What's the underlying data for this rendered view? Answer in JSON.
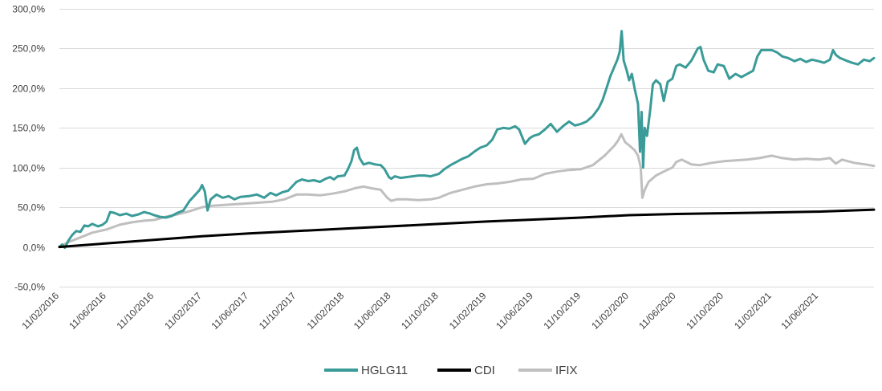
{
  "chart_data": {
    "type": "line",
    "xlabel": "",
    "ylabel": "",
    "y_ticks": [
      "300,0%",
      "250,0%",
      "200,0%",
      "150,0%",
      "100,0%",
      "50,0%",
      "0,0%",
      "-50,0%"
    ],
    "y_tick_values": [
      300,
      250,
      200,
      150,
      100,
      50,
      0,
      -50
    ],
    "ylim": [
      -50,
      300
    ],
    "xlim": [
      "2016-02-11",
      "2021-10-31"
    ],
    "x_ticks": [
      "11/02/2016",
      "11/06/2016",
      "11/10/2016",
      "11/02/2017",
      "11/06/2017",
      "11/10/2017",
      "11/02/2018",
      "11/06/2018",
      "11/10/2018",
      "11/02/2019",
      "11/06/2019",
      "11/10/2019",
      "11/02/2020",
      "11/06/2020",
      "11/10/2020",
      "11/02/2021",
      "11/06/2021"
    ],
    "x_tick_dates": [
      "2016-02-11",
      "2016-06-11",
      "2016-10-11",
      "2017-02-11",
      "2017-06-11",
      "2017-10-11",
      "2018-02-11",
      "2018-06-11",
      "2018-10-11",
      "2019-02-11",
      "2019-06-11",
      "2019-10-11",
      "2020-02-11",
      "2020-06-11",
      "2020-10-11",
      "2021-02-11",
      "2021-06-11"
    ],
    "grid": "horizontal",
    "legend_position": "bottom",
    "series": [
      {
        "name": "HGLG11",
        "color": "#3a9b98",
        "points": [
          [
            "2016-02-11",
            0
          ],
          [
            "2016-02-18",
            3
          ],
          [
            "2016-02-25",
            -1
          ],
          [
            "2016-03-05",
            8
          ],
          [
            "2016-03-15",
            15
          ],
          [
            "2016-03-25",
            20
          ],
          [
            "2016-04-05",
            19
          ],
          [
            "2016-04-15",
            27
          ],
          [
            "2016-04-25",
            26
          ],
          [
            "2016-05-05",
            29
          ],
          [
            "2016-05-20",
            26
          ],
          [
            "2016-06-01",
            28
          ],
          [
            "2016-06-11",
            32
          ],
          [
            "2016-06-20",
            44
          ],
          [
            "2016-07-01",
            43
          ],
          [
            "2016-07-15",
            40
          ],
          [
            "2016-08-01",
            42
          ],
          [
            "2016-08-15",
            39
          ],
          [
            "2016-09-01",
            41
          ],
          [
            "2016-09-15",
            44
          ],
          [
            "2016-10-01",
            42
          ],
          [
            "2016-10-11",
            40
          ],
          [
            "2016-10-25",
            38
          ],
          [
            "2016-11-10",
            37
          ],
          [
            "2016-11-25",
            39
          ],
          [
            "2016-12-10",
            43
          ],
          [
            "2016-12-25",
            46
          ],
          [
            "2017-01-10",
            58
          ],
          [
            "2017-01-25",
            66
          ],
          [
            "2017-02-05",
            72
          ],
          [
            "2017-02-11",
            78
          ],
          [
            "2017-02-18",
            70
          ],
          [
            "2017-02-25",
            46
          ],
          [
            "2017-03-05",
            60
          ],
          [
            "2017-03-20",
            66
          ],
          [
            "2017-04-05",
            62
          ],
          [
            "2017-04-20",
            64
          ],
          [
            "2017-05-05",
            60
          ],
          [
            "2017-05-20",
            63
          ],
          [
            "2017-06-11",
            64
          ],
          [
            "2017-07-01",
            66
          ],
          [
            "2017-07-20",
            62
          ],
          [
            "2017-08-05",
            68
          ],
          [
            "2017-08-20",
            65
          ],
          [
            "2017-09-05",
            69
          ],
          [
            "2017-09-20",
            71
          ],
          [
            "2017-10-11",
            82
          ],
          [
            "2017-10-25",
            85
          ],
          [
            "2017-11-10",
            83
          ],
          [
            "2017-11-25",
            84
          ],
          [
            "2017-12-10",
            82
          ],
          [
            "2017-12-25",
            86
          ],
          [
            "2018-01-05",
            88
          ],
          [
            "2018-01-15",
            85
          ],
          [
            "2018-01-25",
            89
          ],
          [
            "2018-02-11",
            90
          ],
          [
            "2018-02-20",
            98
          ],
          [
            "2018-03-01",
            108
          ],
          [
            "2018-03-08",
            122
          ],
          [
            "2018-03-15",
            125
          ],
          [
            "2018-03-22",
            112
          ],
          [
            "2018-04-01",
            104
          ],
          [
            "2018-04-15",
            106
          ],
          [
            "2018-05-01",
            104
          ],
          [
            "2018-05-15",
            103
          ],
          [
            "2018-05-25",
            98
          ],
          [
            "2018-06-05",
            88
          ],
          [
            "2018-06-11",
            86
          ],
          [
            "2018-06-20",
            89
          ],
          [
            "2018-07-05",
            87
          ],
          [
            "2018-07-20",
            88
          ],
          [
            "2018-08-05",
            89
          ],
          [
            "2018-08-20",
            90
          ],
          [
            "2018-09-05",
            90
          ],
          [
            "2018-09-20",
            89
          ],
          [
            "2018-10-11",
            92
          ],
          [
            "2018-10-25",
            98
          ],
          [
            "2018-11-10",
            103
          ],
          [
            "2018-11-25",
            107
          ],
          [
            "2018-12-10",
            111
          ],
          [
            "2018-12-25",
            114
          ],
          [
            "2019-01-10",
            120
          ],
          [
            "2019-01-25",
            125
          ],
          [
            "2019-02-11",
            128
          ],
          [
            "2019-02-25",
            135
          ],
          [
            "2019-03-10",
            148
          ],
          [
            "2019-03-25",
            150
          ],
          [
            "2019-04-10",
            149
          ],
          [
            "2019-04-25",
            152
          ],
          [
            "2019-05-05",
            148
          ],
          [
            "2019-05-20",
            130
          ],
          [
            "2019-06-01",
            137
          ],
          [
            "2019-06-11",
            140
          ],
          [
            "2019-06-25",
            142
          ],
          [
            "2019-07-10",
            148
          ],
          [
            "2019-07-25",
            155
          ],
          [
            "2019-08-10",
            145
          ],
          [
            "2019-08-25",
            152
          ],
          [
            "2019-09-10",
            158
          ],
          [
            "2019-09-25",
            153
          ],
          [
            "2019-10-11",
            155
          ],
          [
            "2019-10-25",
            158
          ],
          [
            "2019-11-10",
            165
          ],
          [
            "2019-11-25",
            175
          ],
          [
            "2019-12-05",
            185
          ],
          [
            "2019-12-15",
            200
          ],
          [
            "2019-12-25",
            215
          ],
          [
            "2020-01-05",
            228
          ],
          [
            "2020-01-12",
            236
          ],
          [
            "2020-01-18",
            246
          ],
          [
            "2020-01-23",
            272
          ],
          [
            "2020-01-28",
            235
          ],
          [
            "2020-02-05",
            222
          ],
          [
            "2020-02-11",
            210
          ],
          [
            "2020-02-18",
            218
          ],
          [
            "2020-02-25",
            200
          ],
          [
            "2020-03-05",
            180
          ],
          [
            "2020-03-10",
            120
          ],
          [
            "2020-03-14",
            170
          ],
          [
            "2020-03-18",
            100
          ],
          [
            "2020-03-22",
            150
          ],
          [
            "2020-03-28",
            140
          ],
          [
            "2020-04-05",
            172
          ],
          [
            "2020-04-12",
            205
          ],
          [
            "2020-04-20",
            210
          ],
          [
            "2020-05-01",
            205
          ],
          [
            "2020-05-10",
            184
          ],
          [
            "2020-05-20",
            208
          ],
          [
            "2020-06-01",
            212
          ],
          [
            "2020-06-11",
            228
          ],
          [
            "2020-06-20",
            230
          ],
          [
            "2020-07-05",
            226
          ],
          [
            "2020-07-20",
            235
          ],
          [
            "2020-08-05",
            250
          ],
          [
            "2020-08-12",
            252
          ],
          [
            "2020-08-20",
            236
          ],
          [
            "2020-09-01",
            222
          ],
          [
            "2020-09-15",
            220
          ],
          [
            "2020-09-25",
            230
          ],
          [
            "2020-10-11",
            228
          ],
          [
            "2020-10-25",
            212
          ],
          [
            "2020-11-10",
            218
          ],
          [
            "2020-11-25",
            214
          ],
          [
            "2020-12-10",
            218
          ],
          [
            "2020-12-25",
            222
          ],
          [
            "2021-01-05",
            240
          ],
          [
            "2021-01-15",
            248
          ],
          [
            "2021-02-11",
            248
          ],
          [
            "2021-02-25",
            245
          ],
          [
            "2021-03-10",
            240
          ],
          [
            "2021-03-25",
            238
          ],
          [
            "2021-04-10",
            234
          ],
          [
            "2021-04-25",
            237
          ],
          [
            "2021-05-10",
            233
          ],
          [
            "2021-05-25",
            236
          ],
          [
            "2021-06-11",
            234
          ],
          [
            "2021-06-25",
            232
          ],
          [
            "2021-07-10",
            236
          ],
          [
            "2021-07-18",
            248
          ],
          [
            "2021-07-25",
            242
          ],
          [
            "2021-08-05",
            238
          ],
          [
            "2021-08-20",
            235
          ],
          [
            "2021-09-05",
            232
          ],
          [
            "2021-09-20",
            230
          ],
          [
            "2021-10-05",
            236
          ],
          [
            "2021-10-20",
            234
          ],
          [
            "2021-10-31",
            238
          ]
        ]
      },
      {
        "name": "CDI",
        "color": "#000000",
        "points": [
          [
            "2016-02-11",
            0
          ],
          [
            "2016-06-11",
            4.5
          ],
          [
            "2016-10-11",
            9
          ],
          [
            "2017-02-11",
            13.5
          ],
          [
            "2017-06-11",
            17
          ],
          [
            "2017-10-11",
            20
          ],
          [
            "2018-02-11",
            23
          ],
          [
            "2018-06-11",
            26
          ],
          [
            "2018-10-11",
            29
          ],
          [
            "2019-02-11",
            32
          ],
          [
            "2019-06-11",
            34.5
          ],
          [
            "2019-10-11",
            37
          ],
          [
            "2020-02-11",
            40
          ],
          [
            "2020-06-11",
            41.5
          ],
          [
            "2020-10-11",
            42.5
          ],
          [
            "2021-02-11",
            43.5
          ],
          [
            "2021-06-11",
            44.5
          ],
          [
            "2021-10-31",
            47
          ]
        ]
      },
      {
        "name": "IFIX",
        "color": "#bfbfbf",
        "points": [
          [
            "2016-02-11",
            0
          ],
          [
            "2016-03-05",
            6
          ],
          [
            "2016-04-05",
            12
          ],
          [
            "2016-05-05",
            18
          ],
          [
            "2016-06-11",
            22
          ],
          [
            "2016-07-15",
            28
          ],
          [
            "2016-08-15",
            31
          ],
          [
            "2016-09-15",
            33
          ],
          [
            "2016-10-11",
            34
          ],
          [
            "2016-11-10",
            38
          ],
          [
            "2016-12-10",
            41
          ],
          [
            "2017-01-10",
            45
          ],
          [
            "2017-02-11",
            50
          ],
          [
            "2017-03-10",
            52
          ],
          [
            "2017-04-10",
            53
          ],
          [
            "2017-05-10",
            54
          ],
          [
            "2017-06-11",
            55
          ],
          [
            "2017-07-10",
            56
          ],
          [
            "2017-08-10",
            57
          ],
          [
            "2017-09-10",
            60
          ],
          [
            "2017-10-11",
            66
          ],
          [
            "2017-11-10",
            66
          ],
          [
            "2017-12-10",
            65
          ],
          [
            "2018-01-10",
            67
          ],
          [
            "2018-02-11",
            70
          ],
          [
            "2018-03-10",
            74
          ],
          [
            "2018-04-01",
            76
          ],
          [
            "2018-04-20",
            74
          ],
          [
            "2018-05-15",
            72
          ],
          [
            "2018-06-01",
            62
          ],
          [
            "2018-06-11",
            58
          ],
          [
            "2018-06-25",
            60
          ],
          [
            "2018-07-20",
            60
          ],
          [
            "2018-08-20",
            59
          ],
          [
            "2018-09-20",
            60
          ],
          [
            "2018-10-11",
            62
          ],
          [
            "2018-11-10",
            68
          ],
          [
            "2018-12-10",
            72
          ],
          [
            "2019-01-10",
            76
          ],
          [
            "2019-02-11",
            79
          ],
          [
            "2019-03-10",
            80
          ],
          [
            "2019-04-10",
            82
          ],
          [
            "2019-05-10",
            85
          ],
          [
            "2019-06-11",
            86
          ],
          [
            "2019-07-10",
            92
          ],
          [
            "2019-08-10",
            95
          ],
          [
            "2019-09-10",
            97
          ],
          [
            "2019-10-11",
            98
          ],
          [
            "2019-11-10",
            103
          ],
          [
            "2019-12-10",
            115
          ],
          [
            "2020-01-05",
            128
          ],
          [
            "2020-01-15",
            135
          ],
          [
            "2020-01-22",
            142
          ],
          [
            "2020-02-01",
            132
          ],
          [
            "2020-02-11",
            128
          ],
          [
            "2020-02-25",
            122
          ],
          [
            "2020-03-05",
            115
          ],
          [
            "2020-03-12",
            100
          ],
          [
            "2020-03-16",
            62
          ],
          [
            "2020-03-22",
            72
          ],
          [
            "2020-04-01",
            82
          ],
          [
            "2020-04-20",
            90
          ],
          [
            "2020-05-10",
            95
          ],
          [
            "2020-06-01",
            100
          ],
          [
            "2020-06-11",
            107
          ],
          [
            "2020-06-25",
            110
          ],
          [
            "2020-07-20",
            104
          ],
          [
            "2020-08-10",
            103
          ],
          [
            "2020-09-10",
            106
          ],
          [
            "2020-10-11",
            108
          ],
          [
            "2020-11-10",
            109
          ],
          [
            "2020-12-10",
            110
          ],
          [
            "2021-01-10",
            112
          ],
          [
            "2021-02-11",
            115
          ],
          [
            "2021-03-10",
            112
          ],
          [
            "2021-04-10",
            110
          ],
          [
            "2021-05-10",
            111
          ],
          [
            "2021-06-11",
            110
          ],
          [
            "2021-07-10",
            112
          ],
          [
            "2021-07-25",
            105
          ],
          [
            "2021-08-10",
            110
          ],
          [
            "2021-09-10",
            106
          ],
          [
            "2021-10-10",
            104
          ],
          [
            "2021-10-31",
            102
          ]
        ]
      }
    ]
  }
}
